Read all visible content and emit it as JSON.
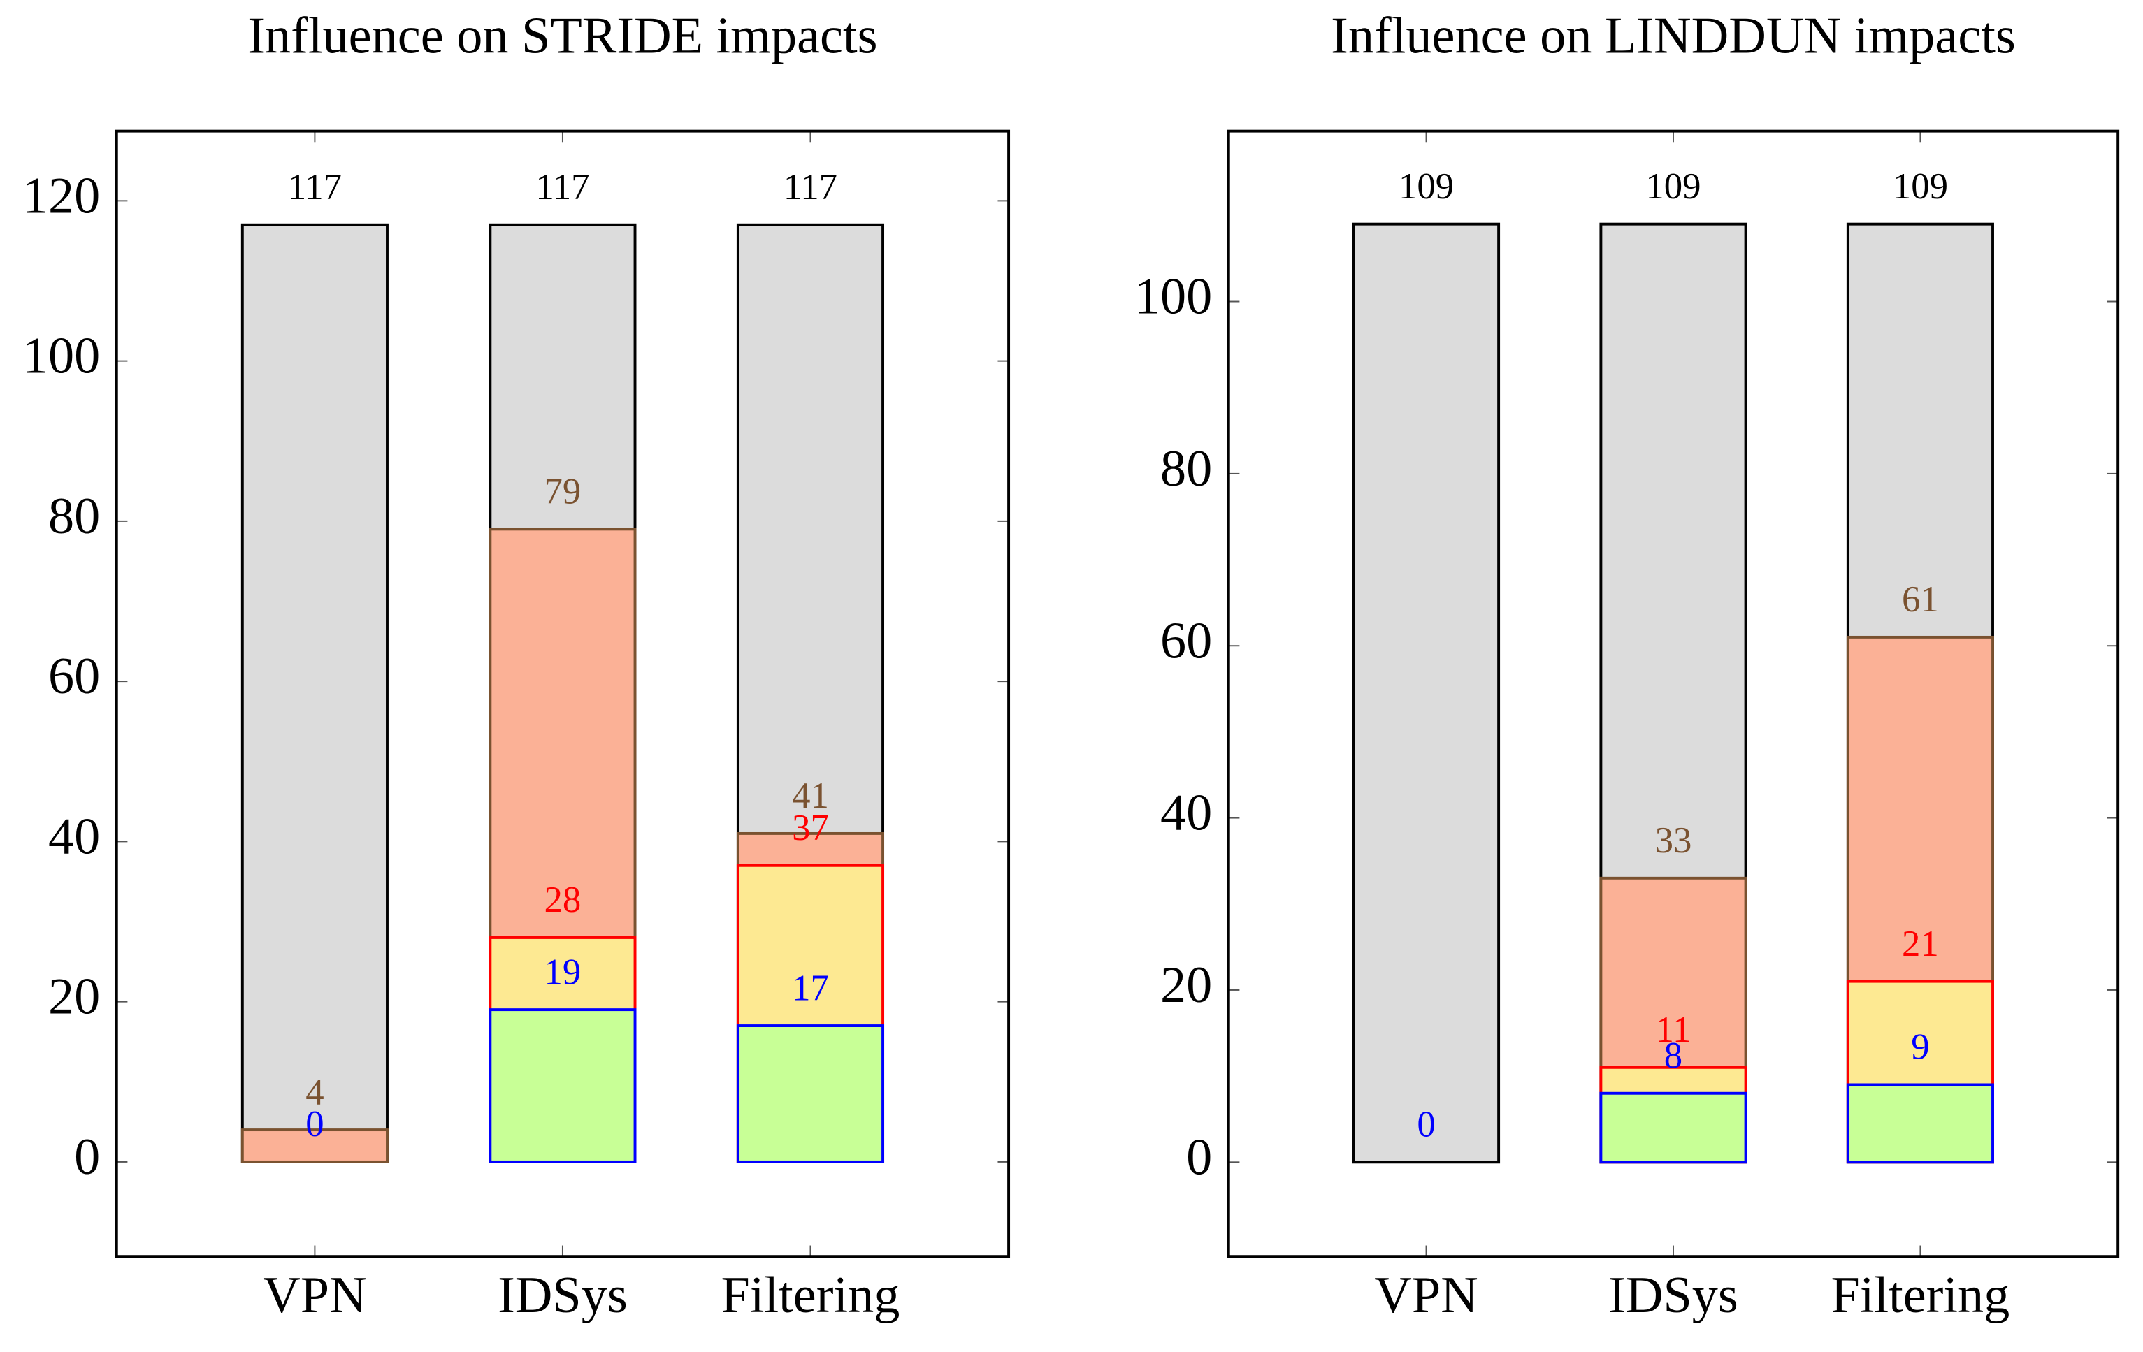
{
  "chart_data": [
    {
      "type": "bar",
      "title": "Influence on STRIDE impacts",
      "bar_mode": "overlay",
      "categories": [
        "VPN",
        "IDSys",
        "Filtering"
      ],
      "ylim": [
        -11.8,
        128.7
      ],
      "yticks": [
        0,
        20,
        40,
        60,
        80,
        100,
        120
      ],
      "series": [
        {
          "color": "#dcdcdc",
          "edge_color": "#000000",
          "label_color": "#000000",
          "values": [
            117,
            117,
            117
          ]
        },
        {
          "color": "#fbb196",
          "edge_color": "#7a5230",
          "label_color": "#7a5230",
          "values": [
            4,
            79,
            41
          ]
        },
        {
          "color": "#fde992",
          "edge_color": "#ff0000",
          "label_color": "#ff0000",
          "values": [
            null,
            28,
            37
          ]
        },
        {
          "color": "#c8ff96",
          "edge_color": "#0000ff",
          "label_color": "#0000ff",
          "values": [
            0,
            19,
            17
          ]
        }
      ]
    },
    {
      "type": "bar",
      "title": "Influence on LINDDUN impacts",
      "bar_mode": "overlay",
      "categories": [
        "VPN",
        "IDSys",
        "Filtering"
      ],
      "ylim": [
        -10.95,
        119.8
      ],
      "yticks": [
        0,
        20,
        40,
        60,
        80,
        100
      ],
      "series": [
        {
          "color": "#dcdcdc",
          "edge_color": "#000000",
          "label_color": "#000000",
          "values": [
            109,
            109,
            109
          ]
        },
        {
          "color": "#fbb196",
          "edge_color": "#7a5230",
          "label_color": "#7a5230",
          "values": [
            null,
            33,
            61
          ]
        },
        {
          "color": "#fde992",
          "edge_color": "#ff0000",
          "label_color": "#ff0000",
          "values": [
            null,
            11,
            21
          ]
        },
        {
          "color": "#c8ff96",
          "edge_color": "#0000ff",
          "label_color": "#0000ff",
          "values": [
            0,
            8,
            9
          ]
        }
      ]
    }
  ]
}
